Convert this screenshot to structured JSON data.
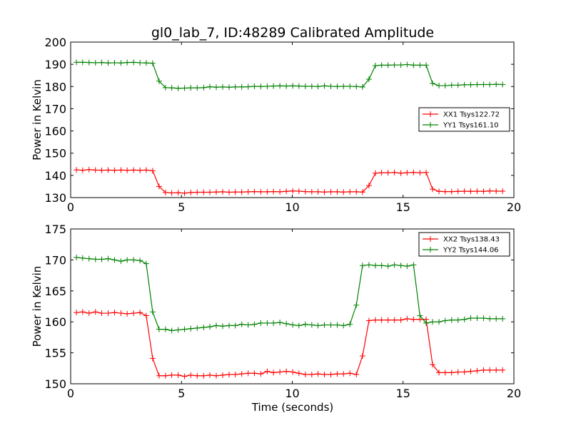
{
  "figure": {
    "title": "gl0_lab_7, ID:48289 Calibrated Amplitude",
    "xlabel": "Time (seconds)"
  },
  "chart_data": [
    {
      "type": "line",
      "ylabel": "Power in Kelvin",
      "xlim": [
        0,
        20
      ],
      "ylim": [
        130,
        200
      ],
      "xticks": [
        0,
        5,
        10,
        15,
        20
      ],
      "yticks": [
        130,
        140,
        150,
        160,
        170,
        180,
        190,
        200
      ],
      "grid": false,
      "legend_position": "center-right",
      "series": [
        {
          "name": "XX1 Tsys122.72",
          "color": "#ff0000",
          "marker": "+",
          "x": [
            0.26,
            0.54,
            0.83,
            1.12,
            1.4,
            1.69,
            1.98,
            2.27,
            2.55,
            2.84,
            3.13,
            3.41,
            3.7,
            3.99,
            4.28,
            4.56,
            4.85,
            5.14,
            5.42,
            5.71,
            6.0,
            6.28,
            6.57,
            6.86,
            7.15,
            7.43,
            7.72,
            8.01,
            8.29,
            8.58,
            8.87,
            9.15,
            9.44,
            9.73,
            10.02,
            10.3,
            10.59,
            10.88,
            11.16,
            11.45,
            11.74,
            12.03,
            12.31,
            12.6,
            12.89,
            13.17,
            13.46,
            13.75,
            14.03,
            14.32,
            14.61,
            14.9,
            15.18,
            15.47,
            15.76,
            16.04,
            16.33,
            16.62,
            16.9,
            17.19,
            17.48,
            17.77,
            18.05,
            18.34,
            18.63,
            18.91,
            19.2,
            19.49
          ],
          "y": [
            142.5,
            142.3,
            142.6,
            142.4,
            142.3,
            142.4,
            142.3,
            142.4,
            142.3,
            142.4,
            142.3,
            142.4,
            142.1,
            135.0,
            132.3,
            132.1,
            132.2,
            132.0,
            132.3,
            132.4,
            132.4,
            132.4,
            132.5,
            132.6,
            132.4,
            132.5,
            132.5,
            132.6,
            132.7,
            132.6,
            132.6,
            132.7,
            132.6,
            132.8,
            133.0,
            132.9,
            132.7,
            132.6,
            132.6,
            132.5,
            132.6,
            132.6,
            132.5,
            132.6,
            132.6,
            132.5,
            135.4,
            141.0,
            141.2,
            141.2,
            141.3,
            141.0,
            141.2,
            141.3,
            141.2,
            141.3,
            133.8,
            132.8,
            132.7,
            132.7,
            132.8,
            132.9,
            132.8,
            132.9,
            132.8,
            133.0,
            132.9,
            132.9
          ]
        },
        {
          "name": "YY1 Tsys161.10",
          "color": "#008000",
          "marker": "+",
          "x": [
            0.26,
            0.54,
            0.83,
            1.12,
            1.4,
            1.69,
            1.98,
            2.27,
            2.55,
            2.84,
            3.13,
            3.41,
            3.7,
            3.99,
            4.28,
            4.56,
            4.85,
            5.14,
            5.42,
            5.71,
            6.0,
            6.28,
            6.57,
            6.86,
            7.15,
            7.43,
            7.72,
            8.01,
            8.29,
            8.58,
            8.87,
            9.15,
            9.44,
            9.73,
            10.02,
            10.3,
            10.59,
            10.88,
            11.16,
            11.45,
            11.74,
            12.03,
            12.31,
            12.6,
            12.89,
            13.17,
            13.46,
            13.75,
            14.03,
            14.32,
            14.61,
            14.9,
            15.18,
            15.47,
            15.76,
            16.04,
            16.33,
            16.62,
            16.9,
            17.19,
            17.48,
            17.77,
            18.05,
            18.34,
            18.63,
            18.91,
            19.2,
            19.49
          ],
          "y": [
            190.9,
            190.9,
            190.8,
            190.7,
            190.8,
            190.6,
            190.7,
            190.6,
            190.8,
            190.9,
            190.7,
            190.6,
            190.5,
            182.4,
            179.5,
            179.4,
            179.2,
            179.3,
            179.4,
            179.4,
            179.5,
            179.9,
            179.7,
            179.8,
            179.7,
            179.8,
            179.8,
            179.9,
            180.1,
            180.0,
            180.1,
            180.2,
            180.3,
            180.2,
            180.3,
            180.2,
            180.1,
            180.1,
            180.0,
            180.3,
            180.1,
            180.0,
            180.1,
            180.1,
            180.0,
            179.8,
            183.3,
            189.4,
            189.6,
            189.6,
            189.7,
            189.7,
            189.9,
            189.6,
            189.6,
            189.6,
            181.4,
            180.4,
            180.4,
            180.6,
            180.6,
            180.8,
            180.8,
            180.9,
            180.9,
            180.9,
            181.0,
            180.9
          ]
        }
      ]
    },
    {
      "type": "line",
      "ylabel": "Power in Kelvin",
      "xlabel": "Time (seconds)",
      "xlim": [
        0,
        20
      ],
      "ylim": [
        150,
        175
      ],
      "xticks": [
        0,
        5,
        10,
        15,
        20
      ],
      "yticks": [
        150,
        155,
        160,
        165,
        170,
        175
      ],
      "grid": false,
      "legend_position": "top-right",
      "series": [
        {
          "name": "XX2 Tsys138.43",
          "color": "#ff0000",
          "marker": "+",
          "x": [
            0.26,
            0.54,
            0.83,
            1.12,
            1.4,
            1.69,
            1.98,
            2.27,
            2.55,
            2.84,
            3.13,
            3.41,
            3.7,
            3.99,
            4.28,
            4.56,
            4.85,
            5.14,
            5.42,
            5.71,
            6.0,
            6.28,
            6.57,
            6.86,
            7.15,
            7.43,
            7.72,
            8.01,
            8.29,
            8.58,
            8.87,
            9.15,
            9.44,
            9.73,
            10.02,
            10.3,
            10.59,
            10.88,
            11.16,
            11.45,
            11.74,
            12.03,
            12.31,
            12.6,
            12.89,
            13.17,
            13.46,
            13.75,
            14.03,
            14.32,
            14.61,
            14.9,
            15.18,
            15.47,
            15.76,
            16.04,
            16.33,
            16.62,
            16.9,
            17.19,
            17.48,
            17.77,
            18.05,
            18.34,
            18.63,
            18.91,
            19.2,
            19.49
          ],
          "y": [
            161.5,
            161.6,
            161.4,
            161.6,
            161.4,
            161.4,
            161.5,
            161.4,
            161.3,
            161.4,
            161.5,
            161.0,
            154.1,
            151.3,
            151.3,
            151.4,
            151.4,
            151.2,
            151.4,
            151.3,
            151.3,
            151.4,
            151.3,
            151.4,
            151.5,
            151.5,
            151.6,
            151.7,
            151.7,
            151.6,
            152.0,
            151.8,
            151.9,
            152.0,
            151.9,
            151.7,
            151.5,
            151.5,
            151.6,
            151.5,
            151.5,
            151.6,
            151.6,
            151.7,
            151.5,
            154.5,
            160.2,
            160.3,
            160.3,
            160.3,
            160.3,
            160.3,
            160.5,
            160.4,
            160.4,
            160.4,
            153.1,
            151.8,
            151.8,
            151.8,
            151.9,
            151.9,
            152.0,
            152.1,
            152.2,
            152.2,
            152.2,
            152.2
          ]
        },
        {
          "name": "YY2 Tsys144.06",
          "color": "#008000",
          "marker": "+",
          "x": [
            0.26,
            0.54,
            0.83,
            1.12,
            1.4,
            1.69,
            1.98,
            2.27,
            2.55,
            2.84,
            3.13,
            3.41,
            3.7,
            3.99,
            4.28,
            4.56,
            4.85,
            5.14,
            5.42,
            5.71,
            6.0,
            6.28,
            6.57,
            6.86,
            7.15,
            7.43,
            7.72,
            8.01,
            8.29,
            8.58,
            8.87,
            9.15,
            9.44,
            9.73,
            10.02,
            10.3,
            10.59,
            10.88,
            11.16,
            11.45,
            11.74,
            12.03,
            12.31,
            12.6,
            12.89,
            13.17,
            13.46,
            13.75,
            14.03,
            14.32,
            14.61,
            14.9,
            15.18,
            15.47,
            15.76,
            16.04,
            16.33,
            16.62,
            16.9,
            17.19,
            17.48,
            17.77,
            18.05,
            18.34,
            18.63,
            18.91,
            19.2,
            19.49
          ],
          "y": [
            170.4,
            170.3,
            170.2,
            170.1,
            170.1,
            170.2,
            170.0,
            169.8,
            170.0,
            170.0,
            169.9,
            169.4,
            161.6,
            158.8,
            158.8,
            158.6,
            158.7,
            158.8,
            158.9,
            159.0,
            159.1,
            159.2,
            159.4,
            159.3,
            159.4,
            159.4,
            159.6,
            159.5,
            159.6,
            159.8,
            159.8,
            159.8,
            159.9,
            159.7,
            159.5,
            159.4,
            159.6,
            159.5,
            159.4,
            159.5,
            159.5,
            159.5,
            159.4,
            159.6,
            162.7,
            169.1,
            169.2,
            169.1,
            169.1,
            169.0,
            169.2,
            169.1,
            169.0,
            169.2,
            161.0,
            159.8,
            160.0,
            160.0,
            160.2,
            160.3,
            160.3,
            160.4,
            160.6,
            160.6,
            160.6,
            160.5,
            160.5,
            160.5
          ]
        }
      ]
    }
  ]
}
